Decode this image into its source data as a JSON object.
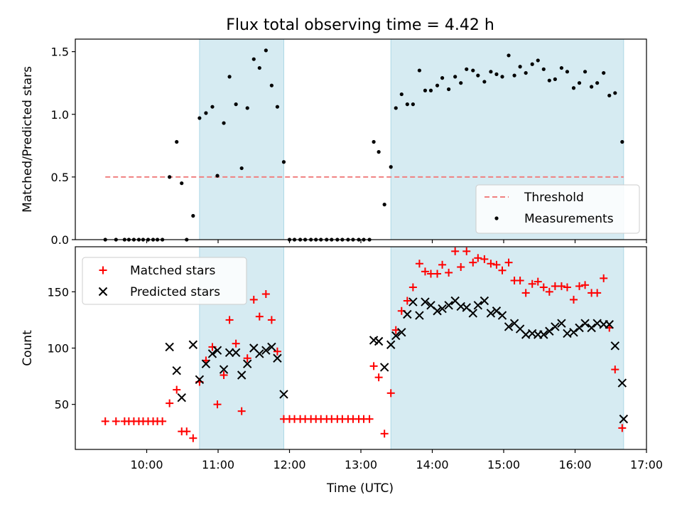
{
  "figure": {
    "title": "Flux total observing time = 4.42 h",
    "xlabel": "Time (UTC)",
    "x_tick_labels": [
      "10:00",
      "11:00",
      "12:00",
      "13:00",
      "14:00",
      "15:00",
      "16:00",
      "17:00"
    ]
  },
  "chart_data": [
    {
      "type": "scatter",
      "title": "Flux total observing time = 4.42 h",
      "xlabel": "",
      "ylabel": "Matched/Predicted stars",
      "x_unit": "hours UTC",
      "xlim": [
        9.0,
        17.0
      ],
      "ylim": [
        0.0,
        1.6
      ],
      "yticks": [
        0.0,
        0.5,
        1.0,
        1.5
      ],
      "ytick_labels": [
        "0.0",
        "0.5",
        "1.0",
        "1.5"
      ],
      "legend": {
        "placement": "lower right",
        "entries": [
          "Threshold",
          "Measurements"
        ]
      },
      "shaded_intervals": [
        [
          10.74,
          11.92
        ],
        [
          13.42,
          16.68
        ]
      ],
      "threshold": {
        "name": "Threshold",
        "y": 0.5,
        "x_range": [
          9.42,
          16.68
        ],
        "color": "#f08080",
        "style": "dashed"
      },
      "series": [
        {
          "name": "Measurements",
          "color": "#000000",
          "marker": "dot",
          "points": [
            [
              9.42,
              0
            ],
            [
              9.57,
              0
            ],
            [
              9.69,
              0
            ],
            [
              9.75,
              0
            ],
            [
              9.82,
              0
            ],
            [
              9.89,
              0
            ],
            [
              9.95,
              0
            ],
            [
              10.02,
              0
            ],
            [
              10.09,
              0
            ],
            [
              10.15,
              0
            ],
            [
              10.22,
              0
            ],
            [
              10.32,
              0.5
            ],
            [
              10.42,
              0.78
            ],
            [
              10.49,
              0.45
            ],
            [
              10.56,
              0
            ],
            [
              10.65,
              0.19
            ],
            [
              10.74,
              0.97
            ],
            [
              10.83,
              1.01
            ],
            [
              10.92,
              1.06
            ],
            [
              10.99,
              0.51
            ],
            [
              11.08,
              0.93
            ],
            [
              11.16,
              1.3
            ],
            [
              11.25,
              1.08
            ],
            [
              11.33,
              0.57
            ],
            [
              11.41,
              1.05
            ],
            [
              11.5,
              1.44
            ],
            [
              11.58,
              1.37
            ],
            [
              11.67,
              1.51
            ],
            [
              11.75,
              1.23
            ],
            [
              11.83,
              1.06
            ],
            [
              11.92,
              0.62
            ],
            [
              12.0,
              0
            ],
            [
              12.07,
              0
            ],
            [
              12.15,
              0
            ],
            [
              12.22,
              0
            ],
            [
              12.3,
              0
            ],
            [
              12.37,
              0
            ],
            [
              12.44,
              0
            ],
            [
              12.52,
              0
            ],
            [
              12.59,
              0
            ],
            [
              12.67,
              0
            ],
            [
              12.74,
              0
            ],
            [
              12.82,
              0
            ],
            [
              12.89,
              0
            ],
            [
              12.97,
              0
            ],
            [
              13.04,
              0
            ],
            [
              13.12,
              0
            ],
            [
              13.18,
              0.78
            ],
            [
              13.25,
              0.7
            ],
            [
              13.33,
              0.28
            ],
            [
              13.42,
              0.58
            ],
            [
              13.49,
              1.05
            ],
            [
              13.57,
              1.16
            ],
            [
              13.65,
              1.08
            ],
            [
              13.73,
              1.08
            ],
            [
              13.82,
              1.35
            ],
            [
              13.9,
              1.19
            ],
            [
              13.98,
              1.19
            ],
            [
              14.07,
              1.23
            ],
            [
              14.14,
              1.29
            ],
            [
              14.23,
              1.2
            ],
            [
              14.32,
              1.3
            ],
            [
              14.4,
              1.25
            ],
            [
              14.48,
              1.36
            ],
            [
              14.57,
              1.35
            ],
            [
              14.64,
              1.31
            ],
            [
              14.73,
              1.26
            ],
            [
              14.82,
              1.34
            ],
            [
              14.9,
              1.32
            ],
            [
              14.98,
              1.3
            ],
            [
              15.07,
              1.47
            ],
            [
              15.15,
              1.31
            ],
            [
              15.23,
              1.38
            ],
            [
              15.31,
              1.33
            ],
            [
              15.4,
              1.4
            ],
            [
              15.48,
              1.43
            ],
            [
              15.56,
              1.36
            ],
            [
              15.64,
              1.27
            ],
            [
              15.72,
              1.28
            ],
            [
              15.81,
              1.37
            ],
            [
              15.89,
              1.34
            ],
            [
              15.98,
              1.21
            ],
            [
              16.06,
              1.25
            ],
            [
              16.14,
              1.34
            ],
            [
              16.23,
              1.22
            ],
            [
              16.31,
              1.25
            ],
            [
              16.4,
              1.33
            ],
            [
              16.48,
              1.15
            ],
            [
              16.56,
              1.17
            ],
            [
              16.66,
              0.78
            ]
          ]
        }
      ]
    },
    {
      "type": "scatter",
      "title": "",
      "xlabel": "Time (UTC)",
      "ylabel": "Count",
      "x_unit": "hours UTC",
      "xlim": [
        9.0,
        17.0
      ],
      "ylim": [
        10,
        190
      ],
      "yticks": [
        50,
        100,
        150
      ],
      "ytick_labels": [
        "50",
        "100",
        "150"
      ],
      "xticks": [
        10,
        11,
        12,
        13,
        14,
        15,
        16,
        17
      ],
      "legend": {
        "placement": "upper left",
        "entries": [
          "Matched stars",
          "Predicted stars"
        ]
      },
      "shaded_intervals": [
        [
          10.74,
          11.92
        ],
        [
          13.42,
          16.68
        ]
      ],
      "series": [
        {
          "name": "Matched stars",
          "color": "#ff0000",
          "marker": "plus",
          "points": [
            [
              9.42,
              35
            ],
            [
              9.57,
              35
            ],
            [
              9.69,
              35
            ],
            [
              9.75,
              35
            ],
            [
              9.82,
              35
            ],
            [
              9.89,
              35
            ],
            [
              9.95,
              35
            ],
            [
              10.02,
              35
            ],
            [
              10.09,
              35
            ],
            [
              10.15,
              35
            ],
            [
              10.22,
              35
            ],
            [
              10.32,
              51
            ],
            [
              10.42,
              63
            ],
            [
              10.49,
              26
            ],
            [
              10.56,
              26
            ],
            [
              10.65,
              20
            ],
            [
              10.74,
              70
            ],
            [
              10.83,
              89
            ],
            [
              10.92,
              101
            ],
            [
              10.99,
              50
            ],
            [
              11.08,
              76
            ],
            [
              11.16,
              125
            ],
            [
              11.25,
              104
            ],
            [
              11.33,
              44
            ],
            [
              11.41,
              91
            ],
            [
              11.5,
              143
            ],
            [
              11.58,
              128
            ],
            [
              11.67,
              148
            ],
            [
              11.75,
              125
            ],
            [
              11.83,
              97
            ],
            [
              11.92,
              37
            ],
            [
              12.0,
              37
            ],
            [
              12.07,
              37
            ],
            [
              12.15,
              37
            ],
            [
              12.22,
              37
            ],
            [
              12.3,
              37
            ],
            [
              12.37,
              37
            ],
            [
              12.44,
              37
            ],
            [
              12.52,
              37
            ],
            [
              12.59,
              37
            ],
            [
              12.67,
              37
            ],
            [
              12.74,
              37
            ],
            [
              12.82,
              37
            ],
            [
              12.89,
              37
            ],
            [
              12.97,
              37
            ],
            [
              13.04,
              37
            ],
            [
              13.12,
              37
            ],
            [
              13.18,
              84
            ],
            [
              13.25,
              74
            ],
            [
              13.33,
              24
            ],
            [
              13.42,
              60
            ],
            [
              13.49,
              116
            ],
            [
              13.57,
              133
            ],
            [
              13.65,
              142
            ],
            [
              13.73,
              154
            ],
            [
              13.82,
              175
            ],
            [
              13.9,
              168
            ],
            [
              13.98,
              166
            ],
            [
              14.07,
              166
            ],
            [
              14.14,
              174
            ],
            [
              14.23,
              167
            ],
            [
              14.32,
              186
            ],
            [
              14.4,
              172
            ],
            [
              14.48,
              186
            ],
            [
              14.57,
              176
            ],
            [
              14.64,
              180
            ],
            [
              14.73,
              179
            ],
            [
              14.82,
              175
            ],
            [
              14.9,
              174
            ],
            [
              14.98,
              169
            ],
            [
              15.07,
              176
            ],
            [
              15.15,
              160
            ],
            [
              15.23,
              160
            ],
            [
              15.31,
              149
            ],
            [
              15.4,
              157
            ],
            [
              15.48,
              159
            ],
            [
              15.56,
              154
            ],
            [
              15.64,
              150
            ],
            [
              15.72,
              155
            ],
            [
              15.81,
              155
            ],
            [
              15.89,
              154
            ],
            [
              15.98,
              143
            ],
            [
              16.06,
              155
            ],
            [
              16.14,
              156
            ],
            [
              16.23,
              149
            ],
            [
              16.31,
              149
            ],
            [
              16.4,
              162
            ],
            [
              16.48,
              118
            ],
            [
              16.56,
              81
            ],
            [
              16.66,
              29
            ]
          ]
        },
        {
          "name": "Predicted stars",
          "color": "#000000",
          "marker": "x",
          "points": [
            [
              10.32,
              101
            ],
            [
              10.42,
              80
            ],
            [
              10.49,
              56
            ],
            [
              10.65,
              103
            ],
            [
              10.74,
              72
            ],
            [
              10.83,
              86
            ],
            [
              10.92,
              95
            ],
            [
              10.99,
              98
            ],
            [
              11.08,
              81
            ],
            [
              11.16,
              96
            ],
            [
              11.25,
              96
            ],
            [
              11.33,
              76
            ],
            [
              11.41,
              86
            ],
            [
              11.5,
              100
            ],
            [
              11.58,
              95
            ],
            [
              11.67,
              98
            ],
            [
              11.75,
              101
            ],
            [
              11.83,
              91
            ],
            [
              11.92,
              59
            ],
            [
              13.18,
              107
            ],
            [
              13.25,
              106
            ],
            [
              13.33,
              83
            ],
            [
              13.42,
              103
            ],
            [
              13.49,
              111
            ],
            [
              13.57,
              114
            ],
            [
              13.65,
              130
            ],
            [
              13.73,
              141
            ],
            [
              13.82,
              129
            ],
            [
              13.9,
              141
            ],
            [
              13.98,
              138
            ],
            [
              14.07,
              133
            ],
            [
              14.14,
              135
            ],
            [
              14.23,
              138
            ],
            [
              14.32,
              142
            ],
            [
              14.4,
              137
            ],
            [
              14.48,
              136
            ],
            [
              14.57,
              131
            ],
            [
              14.64,
              138
            ],
            [
              14.73,
              142
            ],
            [
              14.82,
              131
            ],
            [
              14.9,
              133
            ],
            [
              14.98,
              129
            ],
            [
              15.07,
              119
            ],
            [
              15.15,
              122
            ],
            [
              15.23,
              117
            ],
            [
              15.31,
              112
            ],
            [
              15.4,
              113
            ],
            [
              15.48,
              112
            ],
            [
              15.56,
              112
            ],
            [
              15.64,
              115
            ],
            [
              15.72,
              119
            ],
            [
              15.81,
              122
            ],
            [
              15.89,
              113
            ],
            [
              15.98,
              114
            ],
            [
              16.06,
              118
            ],
            [
              16.14,
              122
            ],
            [
              16.23,
              118
            ],
            [
              16.31,
              122
            ],
            [
              16.4,
              121
            ],
            [
              16.48,
              121
            ],
            [
              16.56,
              102
            ],
            [
              16.66,
              69
            ],
            [
              16.68,
              37
            ]
          ]
        }
      ]
    }
  ]
}
